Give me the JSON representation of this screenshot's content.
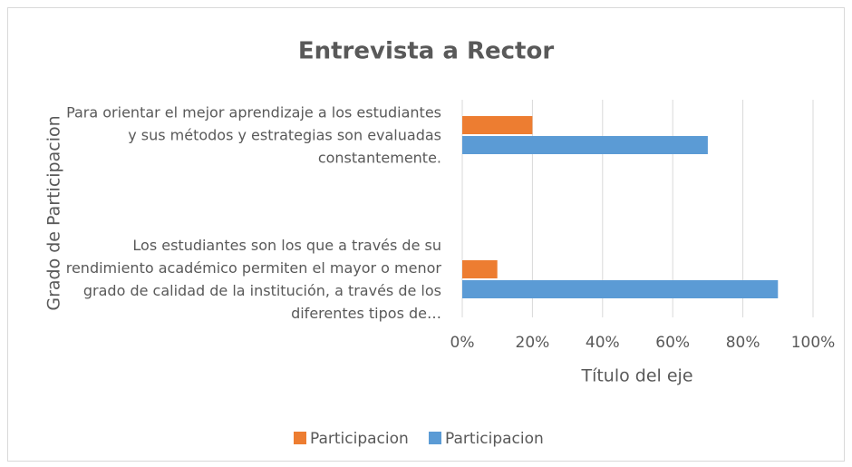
{
  "chart_data": {
    "type": "bar",
    "orientation": "horizontal",
    "title": "Entrevista a Rector",
    "xlabel": "Título del eje",
    "ylabel": "Grado de Participacion",
    "categories": [
      "Para orientar el mejor aprendizaje a los estudiantes y sus métodos y estrategias son evaluadas constantemente.",
      "Los estudiantes son los que a través de su rendimiento académico permiten el mayor o menor grado de calidad de la institución, a través de los diferentes tipos de…"
    ],
    "series": [
      {
        "name": "Participacion",
        "color": "#ed7d31",
        "values": [
          20,
          10
        ]
      },
      {
        "name": "Participacion",
        "color": "#5b9bd5",
        "values": [
          70,
          90
        ]
      }
    ],
    "xlim": [
      0,
      100
    ],
    "xticks": [
      {
        "value": 0,
        "label": "0%"
      },
      {
        "value": 20,
        "label": "20%"
      },
      {
        "value": 40,
        "label": "40%"
      },
      {
        "value": 60,
        "label": "60%"
      },
      {
        "value": 80,
        "label": "80%"
      },
      {
        "value": 100,
        "label": "100%"
      }
    ],
    "grid": true,
    "legend": "bottom"
  }
}
